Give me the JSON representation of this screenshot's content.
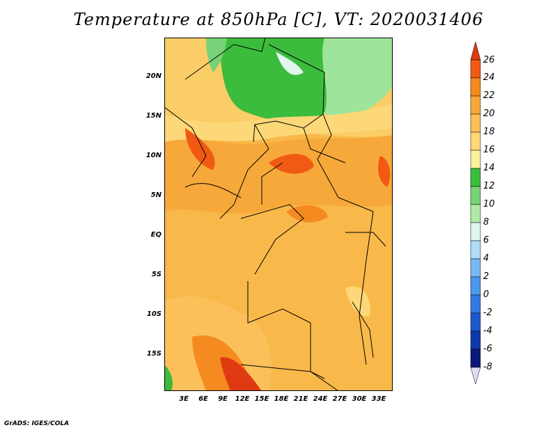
{
  "title": "Temperature at 850hPa [C], VT: 2020031406",
  "credit": "GrADS: IGES/COLA",
  "map": {
    "lat_range": [
      -20,
      24.5
    ],
    "lon_range": [
      0,
      35
    ],
    "lat_ticks": [
      {
        "label": "20N",
        "value": 20
      },
      {
        "label": "15N",
        "value": 15
      },
      {
        "label": "10N",
        "value": 10
      },
      {
        "label": "5N",
        "value": 5
      },
      {
        "label": "EQ",
        "value": 0
      },
      {
        "label": "5S",
        "value": -5
      },
      {
        "label": "10S",
        "value": -10
      },
      {
        "label": "15S",
        "value": -15
      }
    ],
    "lon_ticks": [
      {
        "label": "3E",
        "value": 3
      },
      {
        "label": "6E",
        "value": 6
      },
      {
        "label": "9E",
        "value": 9
      },
      {
        "label": "12E",
        "value": 12
      },
      {
        "label": "15E",
        "value": 15
      },
      {
        "label": "18E",
        "value": 18
      },
      {
        "label": "21E",
        "value": 21
      },
      {
        "label": "24E",
        "value": 24
      },
      {
        "label": "27E",
        "value": 27
      },
      {
        "label": "30E",
        "value": 30
      },
      {
        "label": "33E",
        "value": 33
      }
    ]
  },
  "colorbar": {
    "levels": [
      "26",
      "24",
      "22",
      "20",
      "18",
      "16",
      "14",
      "12",
      "10",
      "8",
      "6",
      "4",
      "2",
      "0",
      "-2",
      "-4",
      "-6",
      "-8"
    ],
    "colors": [
      "#e03a12",
      "#f05a14",
      "#f58a20",
      "#f7a83a",
      "#fbc05a",
      "#fdd878",
      "#fcefa0",
      "#3cbc3c",
      "#78d278",
      "#b0eaa8",
      "#dff5ee",
      "#b0dcf5",
      "#7ab8f0",
      "#4c98ea",
      "#3678e0",
      "#1e58cc",
      "#0f38aa",
      "#0a1878",
      "#dcdcf4"
    ]
  }
}
